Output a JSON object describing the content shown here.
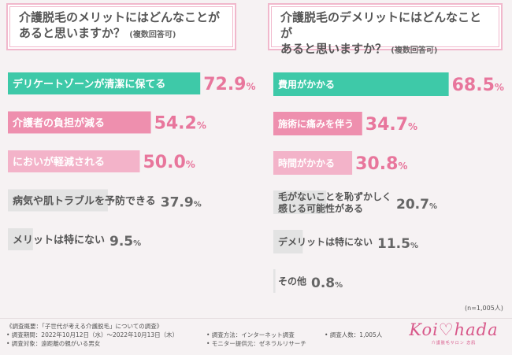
{
  "left_panel": {
    "question": "介護脱毛のメリットにはどんなことが",
    "question_line2": "あると思いますか？",
    "note": "(複数回答可)"
  },
  "right_panel": {
    "question": "介護脱毛のデメリットにはどんなことが",
    "question_line2": "あると思いますか？",
    "note": "(複数回答可)"
  },
  "chart_data": [
    {
      "type": "bar",
      "orientation": "horizontal",
      "categories": [
        "デリケートゾーンが清潔に保てる",
        "介護者の負担が減る",
        "においが軽減される",
        "病気や肌トラブルを予防できる",
        "メリットは特にない"
      ],
      "values": [
        72.9,
        54.2,
        50.0,
        37.9,
        9.5
      ],
      "value_labels": [
        "72.9%",
        "54.2%",
        "50.0%",
        "37.9%",
        "9.5%"
      ],
      "unit": "%",
      "colors": [
        "#3ec9a8",
        "#ee8fae",
        "#f3b3c9",
        "#e3e3e3",
        "#e3e3e3"
      ]
    },
    {
      "type": "bar",
      "orientation": "horizontal",
      "categories": [
        "費用がかかる",
        "施術に痛みを伴う",
        "時間がかかる",
        "毛がないことを恥ずかしく感じる可能性がある",
        "デメリットは特にない",
        "その他"
      ],
      "category_lines": [
        [
          "費用がかかる"
        ],
        [
          "施術に痛みを伴う"
        ],
        [
          "時間がかかる"
        ],
        [
          "毛がないことを恥ずかしく",
          "感じる可能性がある"
        ],
        [
          "デメリットは特にない"
        ],
        [
          "その他"
        ]
      ],
      "values": [
        68.5,
        34.7,
        30.8,
        20.7,
        11.5,
        0.8
      ],
      "value_labels": [
        "68.5%",
        "34.7%",
        "30.8%",
        "20.7%",
        "11.5%",
        "0.8%"
      ],
      "unit": "%",
      "colors": [
        "#3ec9a8",
        "#ee8fae",
        "#f3b3c9",
        "#e3e3e3",
        "#e3e3e3",
        "#e3e3e3"
      ]
    }
  ],
  "sample_size": "(n=1,005人)",
  "footer": {
    "summary": "《調査概要：「子世代が考える介護脱毛」についての調査》",
    "period": "• 調査期間：2022年10月12日（水）～2022年10月13日（木）",
    "target": "• 調査対象：遠距離の親がいる男女",
    "method": "• 調査方法：インターネット調査",
    "provider": "• モニター提供元：ゼネラルリサーチ",
    "count": "• 調査人数：1,005人"
  },
  "logo": {
    "text": "Koi♡hada",
    "sub": "介護脱毛サロン 恋肌"
  },
  "colors": {
    "teal": "#3ec9a8",
    "pink": "#ee8fae",
    "light_pink": "#f3b3c9",
    "gray": "#e3e3e3",
    "value_pink": "#e8769c",
    "value_gray": "#666666"
  }
}
